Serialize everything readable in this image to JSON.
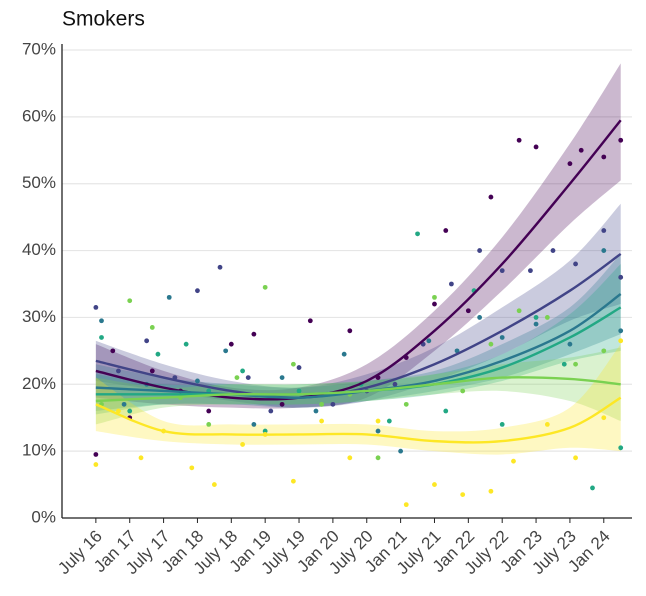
{
  "chart_data": {
    "type": "line",
    "title": "Smokers",
    "xlim": [
      -6,
      95
    ],
    "ylim": [
      0,
      70
    ],
    "xticks": [
      {
        "value": 0,
        "label": "July 16"
      },
      {
        "value": 6,
        "label": "Jan 17"
      },
      {
        "value": 12,
        "label": "July 17"
      },
      {
        "value": 18,
        "label": "Jan 18"
      },
      {
        "value": 24,
        "label": "July 18"
      },
      {
        "value": 30,
        "label": "Jan 19"
      },
      {
        "value": 36,
        "label": "July 19"
      },
      {
        "value": 42,
        "label": "Jan 20"
      },
      {
        "value": 48,
        "label": "July 20"
      },
      {
        "value": 54,
        "label": "Jan 21"
      },
      {
        "value": 60,
        "label": "July 21"
      },
      {
        "value": 66,
        "label": "Jan 22"
      },
      {
        "value": 72,
        "label": "July 22"
      },
      {
        "value": 78,
        "label": "Jan 23"
      },
      {
        "value": 84,
        "label": "July 23"
      },
      {
        "value": 90,
        "label": "Jan 24"
      }
    ],
    "yticks": [
      {
        "value": 0,
        "label": "0%"
      },
      {
        "value": 10,
        "label": "10%"
      },
      {
        "value": 20,
        "label": "20%"
      },
      {
        "value": 30,
        "label": "30%"
      },
      {
        "value": 40,
        "label": "40%"
      },
      {
        "value": 50,
        "label": "50%"
      },
      {
        "value": 60,
        "label": "60%"
      },
      {
        "value": 70,
        "label": "70%"
      }
    ],
    "grid": true,
    "x": [
      0,
      12,
      24,
      36,
      48,
      60,
      72,
      84,
      93
    ],
    "series": [
      {
        "color": "#440154",
        "values": [
          22,
          19.5,
          18,
          18,
          20.5,
          28,
          38,
          50,
          59.5
        ],
        "lower": [
          18,
          17,
          16.5,
          16.5,
          18,
          25,
          34,
          44,
          50.5
        ],
        "upper": [
          26,
          22,
          19.5,
          19.5,
          23,
          31,
          42,
          56,
          68
        ],
        "points_x": [
          0,
          3,
          6,
          10,
          15,
          20,
          24,
          28,
          33,
          38,
          45,
          50,
          55,
          60,
          62,
          66,
          70,
          75,
          78,
          84,
          86,
          90,
          93
        ],
        "points_y": [
          9.5,
          25,
          15,
          22,
          19,
          16,
          26,
          27.5,
          17,
          29.5,
          28,
          21,
          24,
          32,
          43,
          31,
          48,
          56.5,
          55.5,
          53,
          55,
          54,
          56.5
        ]
      },
      {
        "color": "#414487",
        "values": [
          23.5,
          21,
          19,
          18,
          19.5,
          23,
          28,
          34,
          39.5
        ],
        "lower": [
          20.5,
          19,
          17.5,
          16.5,
          17.5,
          20.5,
          24.5,
          29.5,
          32
        ],
        "upper": [
          26.5,
          23,
          20.5,
          19.5,
          21.5,
          25.5,
          31.5,
          38.5,
          47
        ],
        "points_x": [
          0,
          4,
          9,
          14,
          18,
          22,
          27,
          31,
          36,
          42,
          48,
          53,
          58,
          63,
          68,
          72,
          77,
          81,
          85,
          90,
          93
        ],
        "points_y": [
          31.5,
          22,
          26.5,
          21,
          34,
          37.5,
          21,
          16,
          22.5,
          17,
          19,
          20,
          26,
          35,
          40,
          37,
          37,
          40,
          38,
          43,
          36
        ]
      },
      {
        "color": "#2a788e",
        "values": [
          19.5,
          19,
          18.5,
          18,
          19,
          20.5,
          23.5,
          28,
          33.5
        ],
        "lower": [
          16,
          17,
          17,
          16.5,
          17.5,
          19,
          21,
          24.5,
          27.5
        ],
        "upper": [
          23,
          21,
          20,
          19.5,
          20.5,
          22,
          26,
          31.5,
          39.5
        ],
        "points_x": [
          1,
          5,
          9,
          13,
          18,
          23,
          28,
          33,
          39,
          44,
          50,
          54,
          59,
          64,
          68,
          72,
          78,
          84,
          90,
          93
        ],
        "points_y": [
          29.5,
          17,
          20,
          33,
          20.5,
          25,
          14,
          21,
          16,
          24.5,
          13,
          10,
          26.5,
          25,
          30,
          27,
          29,
          26,
          40,
          28
        ]
      },
      {
        "color": "#22a884",
        "values": [
          18.5,
          18.5,
          18.5,
          18.5,
          19,
          20,
          22.5,
          27,
          31.5
        ],
        "lower": [
          15.5,
          17,
          17,
          17,
          17.5,
          18.5,
          20.5,
          23.5,
          25
        ],
        "upper": [
          21.5,
          20,
          20,
          20,
          20.5,
          21.5,
          24.5,
          30.5,
          38
        ],
        "points_x": [
          1,
          6,
          11,
          16,
          20,
          26,
          30,
          36,
          41,
          47,
          52,
          57,
          62,
          67,
          72,
          78,
          83,
          88,
          93
        ],
        "points_y": [
          27,
          16,
          24.5,
          26,
          19,
          22,
          13,
          19,
          18.5,
          20,
          14.5,
          42.5,
          16,
          34,
          14,
          30,
          23,
          4.5,
          10.5
        ]
      },
      {
        "color": "#7ad151",
        "values": [
          17.5,
          18,
          18.5,
          18.5,
          19,
          20,
          21,
          20.8,
          20
        ],
        "lower": [
          14,
          16.5,
          17,
          17,
          17.5,
          18.5,
          19,
          17.5,
          14.5
        ],
        "upper": [
          21,
          19.5,
          20,
          20,
          20.5,
          21.5,
          23,
          24,
          25.5
        ],
        "points_x": [
          1,
          6,
          10,
          15,
          20,
          25,
          30,
          35,
          40,
          45,
          50,
          55,
          60,
          65,
          70,
          75,
          80,
          85,
          90
        ],
        "points_y": [
          17,
          32.5,
          28.5,
          18,
          14,
          21,
          34.5,
          23,
          17,
          18.5,
          9,
          17,
          33,
          19,
          26,
          31,
          30,
          23,
          25
        ]
      },
      {
        "color": "#fde725",
        "values": [
          17,
          13,
          12.5,
          12.5,
          12.5,
          11.5,
          11.5,
          13.5,
          18
        ],
        "lower": [
          13,
          11.5,
          11,
          11,
          11,
          10,
          9.5,
          10.5,
          10
        ],
        "upper": [
          21,
          14.5,
          14,
          14,
          14,
          13,
          13.5,
          16.5,
          26
        ],
        "points_x": [
          0,
          4,
          8,
          12,
          17,
          21,
          26,
          30,
          35,
          40,
          45,
          50,
          55,
          60,
          65,
          70,
          74,
          80,
          85,
          90,
          93
        ],
        "points_y": [
          8,
          16,
          9,
          13,
          7.5,
          5,
          11,
          12.5,
          5.5,
          14.5,
          9,
          14.5,
          2,
          5,
          3.5,
          4,
          8.5,
          14,
          9,
          15,
          26.5
        ]
      }
    ]
  }
}
